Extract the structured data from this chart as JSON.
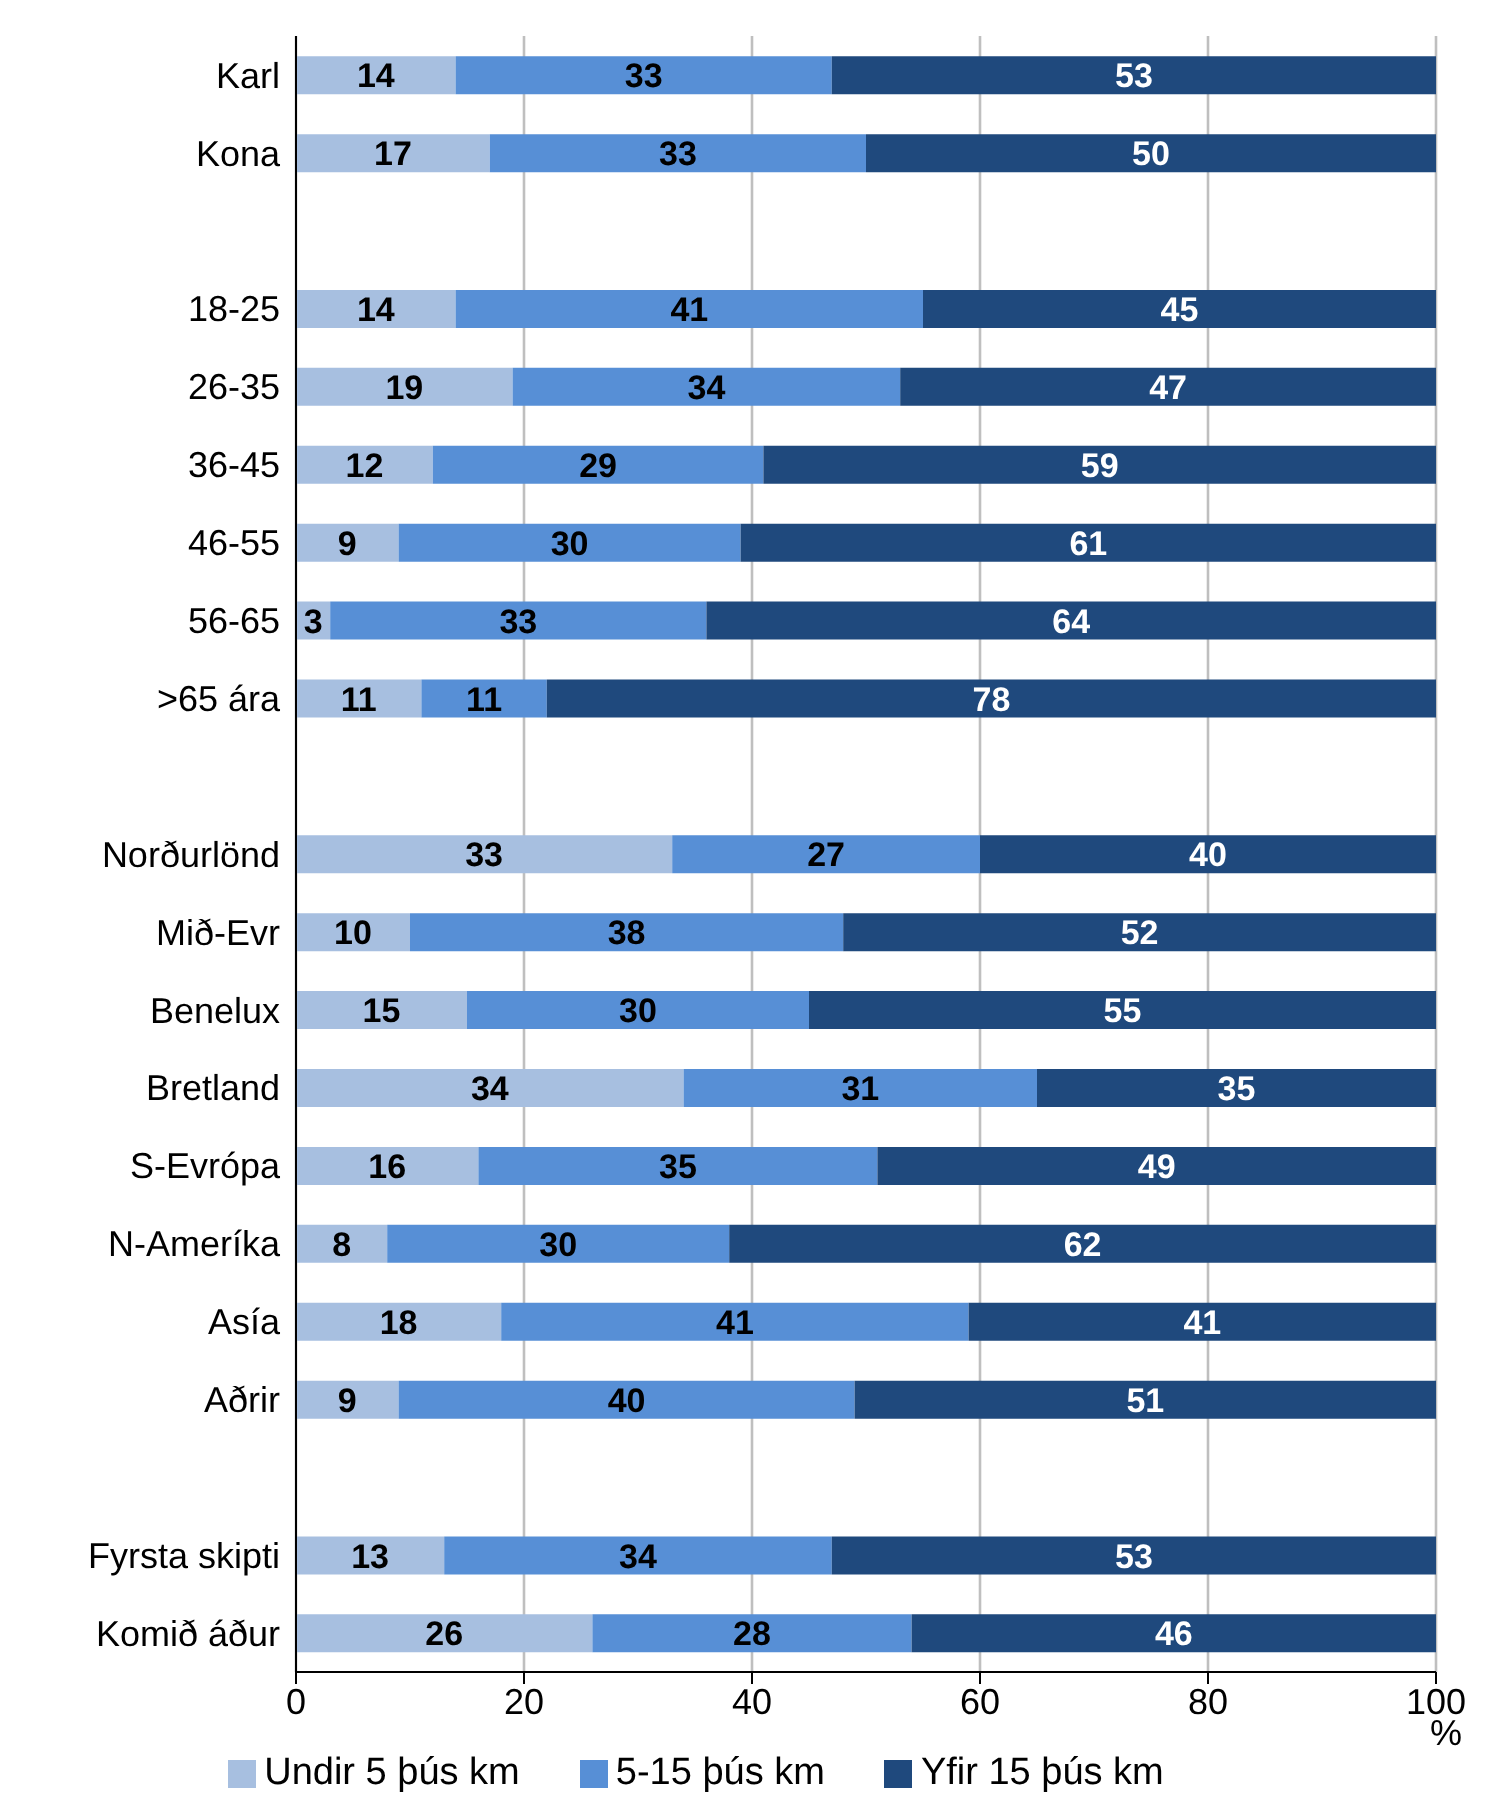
{
  "chart_data": {
    "type": "bar",
    "orientation": "horizontal",
    "stacked": true,
    "xlabel": "%",
    "categories": [
      "Karl",
      "Kona",
      null,
      "18-25",
      "26-35",
      "36-45",
      "46-55",
      "56-65",
      ">65 ára",
      null,
      "Norðurlönd",
      "Mið-Evr",
      "Benelux",
      "Bretland",
      "S-Evrópa",
      "N-Ameríka",
      "Asía",
      "Aðrir",
      null,
      "Fyrsta skipti",
      "Komið áður"
    ],
    "series": [
      {
        "name": "Undir  5 þús km",
        "color": "#a7bfe0",
        "values": [
          14,
          17,
          null,
          14,
          19,
          12,
          9,
          3,
          11,
          null,
          33,
          10,
          15,
          34,
          16,
          8,
          18,
          9,
          null,
          13,
          26
        ]
      },
      {
        "name": "5-15 þús km",
        "color": "#578fd6",
        "values": [
          33,
          33,
          null,
          41,
          34,
          29,
          30,
          33,
          11,
          null,
          27,
          38,
          30,
          31,
          35,
          30,
          41,
          40,
          null,
          34,
          28
        ]
      },
      {
        "name": "Yfir 15 þús km",
        "color": "#1f497d",
        "values": [
          53,
          50,
          null,
          45,
          47,
          59,
          61,
          64,
          78,
          null,
          40,
          52,
          55,
          35,
          49,
          62,
          41,
          51,
          null,
          53,
          46
        ]
      }
    ],
    "xlim": [
      0,
      100
    ],
    "xticks": [
      0,
      20,
      40,
      60,
      80,
      100
    ],
    "grid": "x",
    "legend": "bottom",
    "data_labels": true
  }
}
